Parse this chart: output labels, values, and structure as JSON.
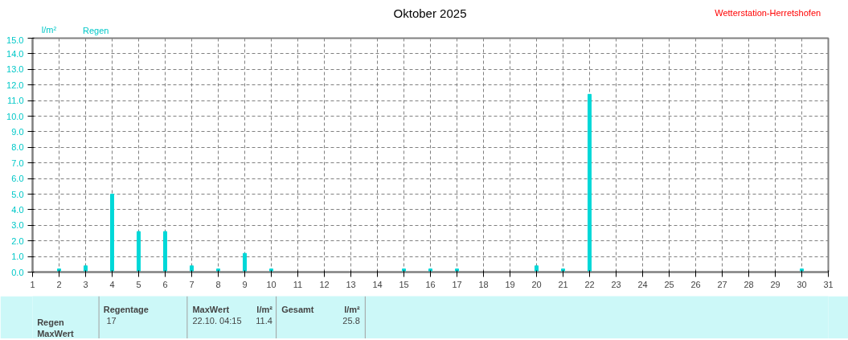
{
  "chart_data": {
    "type": "bar",
    "title": "Oktober 2025",
    "ylabel": "l/m²",
    "x": [
      1,
      2,
      3,
      4,
      5,
      6,
      7,
      8,
      9,
      10,
      11,
      12,
      13,
      14,
      15,
      16,
      17,
      18,
      19,
      20,
      21,
      22,
      23,
      24,
      25,
      26,
      27,
      28,
      29,
      30,
      31
    ],
    "series": [
      {
        "name": "Regen",
        "color": "#00d8d8",
        "values": [
          0,
          0.2,
          0.4,
          5.0,
          2.6,
          2.6,
          0.4,
          0.2,
          1.2,
          0.2,
          0,
          0,
          0,
          0,
          0.2,
          0.2,
          0.2,
          0,
          0,
          0.4,
          0.2,
          11.4,
          0,
          0,
          0,
          0,
          0,
          0,
          0,
          0.2,
          0
        ]
      }
    ],
    "xlim": [
      1,
      31
    ],
    "xticks": [
      1,
      2,
      3,
      4,
      5,
      6,
      7,
      8,
      9,
      10,
      11,
      12,
      13,
      14,
      15,
      16,
      17,
      18,
      19,
      20,
      21,
      22,
      23,
      24,
      25,
      26,
      27,
      28,
      29,
      30,
      31
    ],
    "ylim": [
      0,
      15
    ],
    "yticks": [
      {
        "value": 0,
        "label": "0.0"
      },
      {
        "value": 1,
        "label": "1.0"
      },
      {
        "value": 2,
        "label": "2.0"
      },
      {
        "value": 3,
        "label": "3.0"
      },
      {
        "value": 4,
        "label": "4.0"
      },
      {
        "value": 5,
        "label": "5.0"
      },
      {
        "value": 6,
        "label": "6.0"
      },
      {
        "value": 7,
        "label": "7.0"
      },
      {
        "value": 8,
        "label": "8.0"
      },
      {
        "value": 9,
        "label": "9.0"
      },
      {
        "value": 10,
        "label": "10.0"
      },
      {
        "value": 11,
        "label": "11.0"
      },
      {
        "value": 12,
        "label": "12.0"
      },
      {
        "value": 13,
        "label": "13.0"
      },
      {
        "value": 14,
        "label": "14.0"
      },
      {
        "value": 15,
        "label": "15.0"
      }
    ],
    "grid": true,
    "legend": "top left",
    "annotations": [
      "Wetterstation-Herretshofen",
      "Regentage",
      "17",
      "MaxWert",
      "22.10.  04:15",
      "l/m²",
      "11.4",
      "Gesamt",
      "l/m²",
      "25.8",
      "Regen",
      "MaxWert"
    ]
  }
}
